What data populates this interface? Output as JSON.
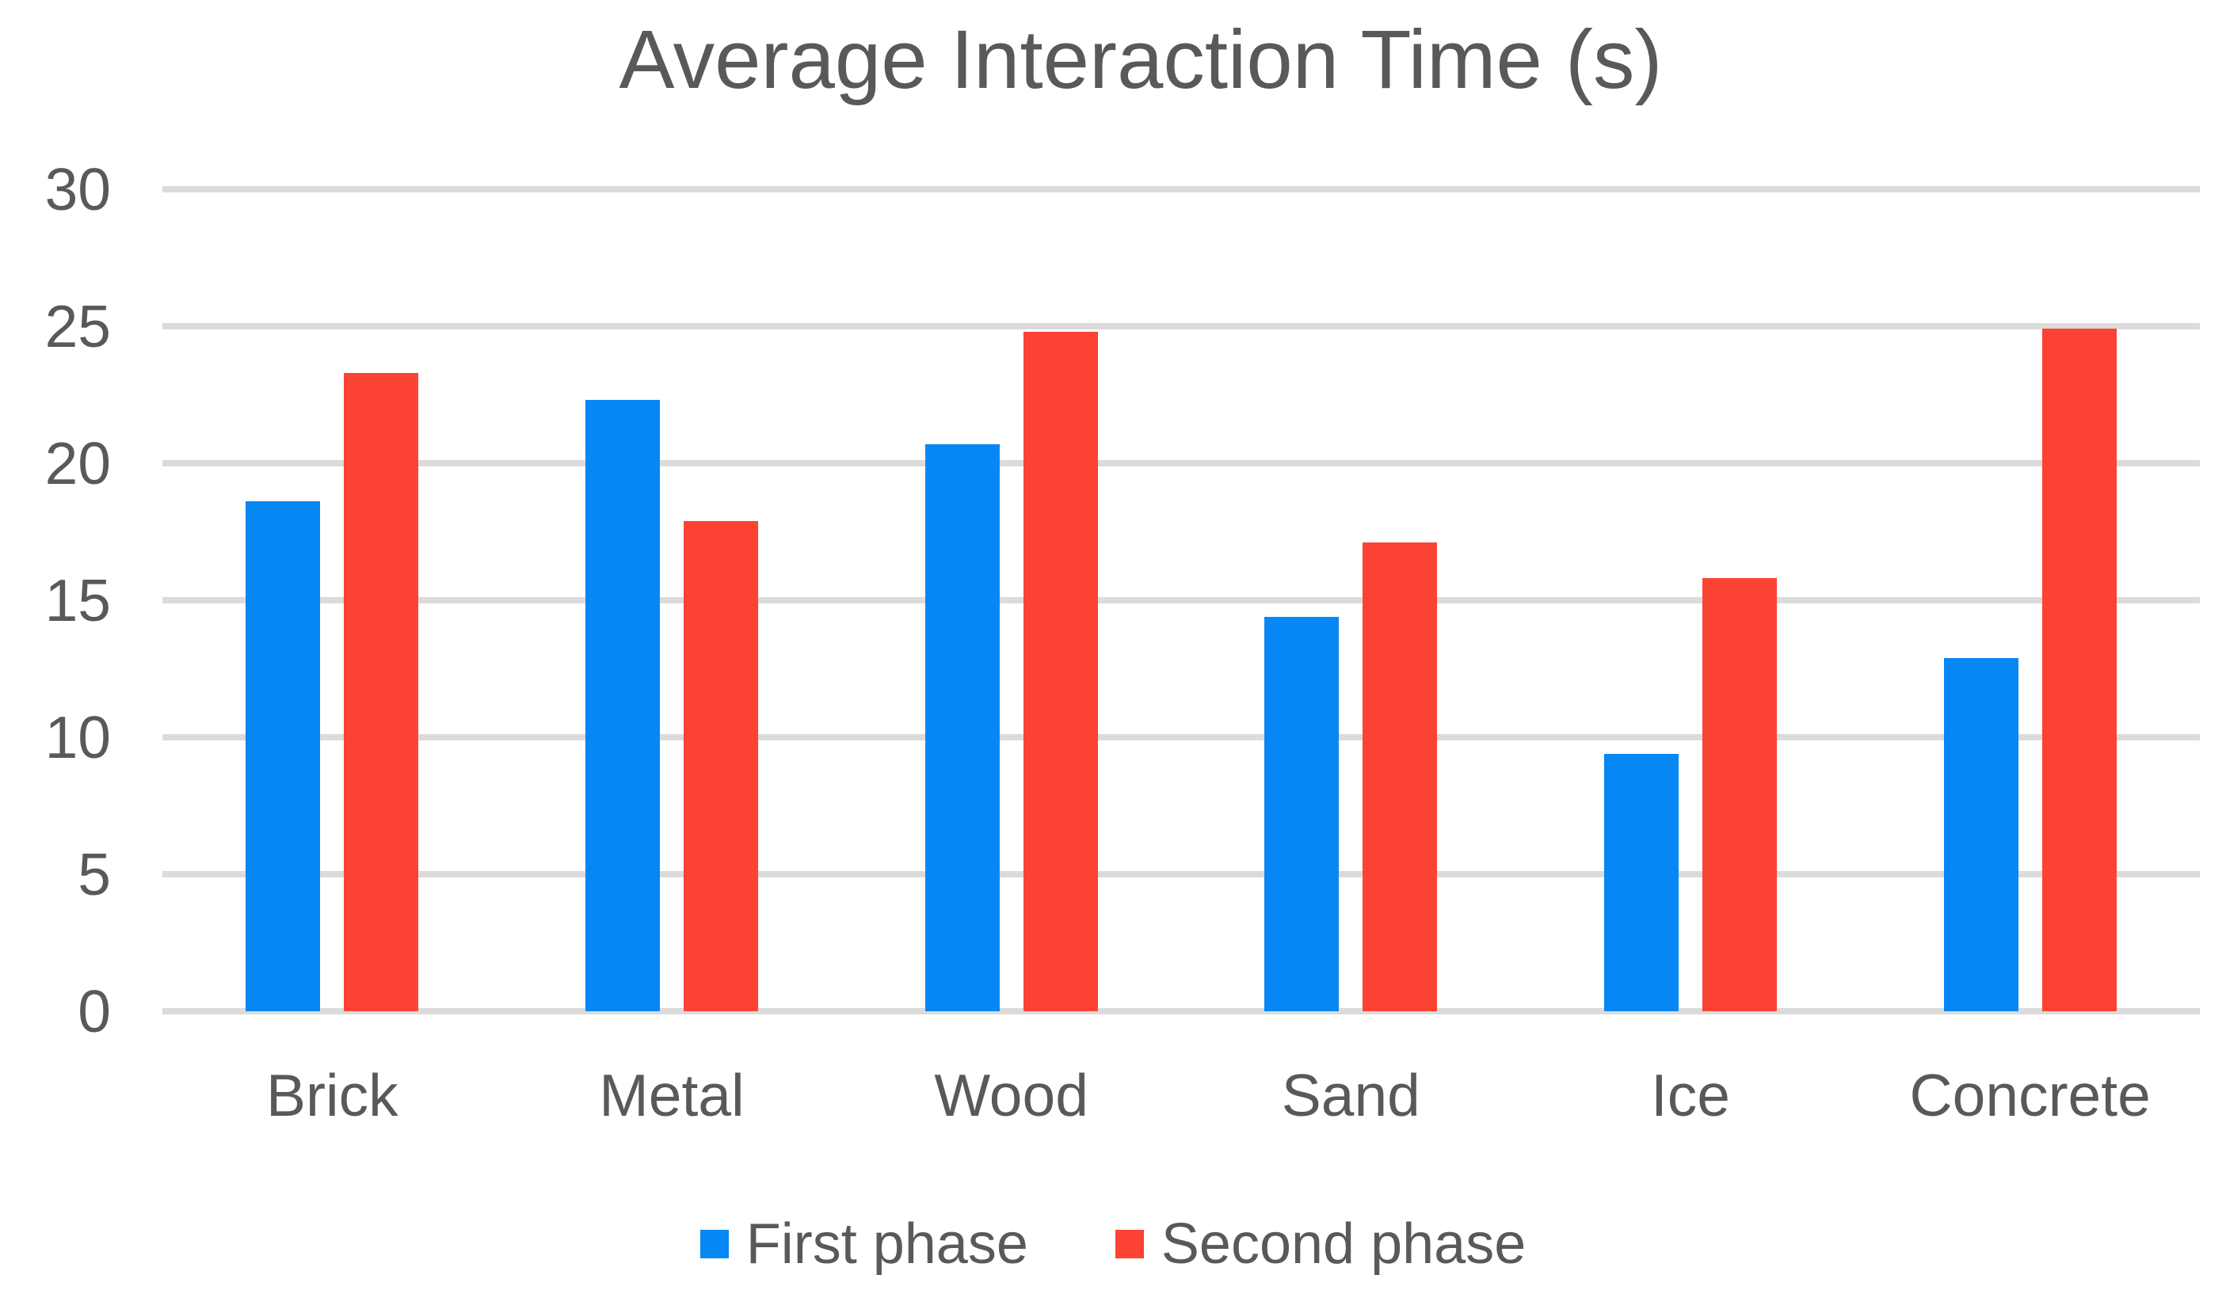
{
  "title": "Average Interaction Time (s)",
  "colors": {
    "first_phase": "#0787F3",
    "second_phase": "#FC4233",
    "gridline": "#DBDBDB",
    "text": "#595959",
    "background": "#FFFFFF"
  },
  "legend": {
    "items": [
      {
        "label": "First phase",
        "swatch_color": "#0787F3"
      },
      {
        "label": "Second phase",
        "swatch_color": "#FC4233"
      }
    ]
  },
  "chart_data": {
    "type": "bar",
    "title": "Average Interaction Time (s)",
    "categories": [
      "Brick",
      "Metal",
      "Wood",
      "Sand",
      "Ice",
      "Concrete"
    ],
    "series": [
      {
        "name": "First phase",
        "color": "#0787F3",
        "values": [
          18.6,
          22.3,
          20.7,
          14.4,
          9.4,
          12.9
        ]
      },
      {
        "name": "Second phase",
        "color": "#FC4233",
        "values": [
          23.3,
          17.9,
          24.8,
          17.1,
          15.8,
          24.9
        ]
      }
    ],
    "xlabel": "",
    "ylabel": "",
    "ylim": [
      0,
      30
    ],
    "yticks": [
      0,
      5,
      10,
      15,
      20,
      25,
      30
    ],
    "grid": true,
    "legend_position": "bottom"
  }
}
